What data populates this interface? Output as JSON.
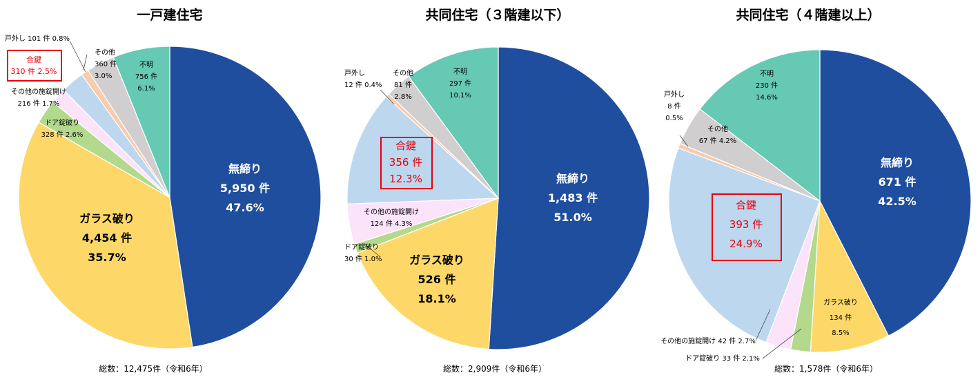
{
  "chart_data": [
    {
      "type": "pie",
      "title": "一戸建住宅",
      "total_label": "総数：12,475件（令和6年）",
      "slices": [
        {
          "name": "無締り",
          "count": "5,950 件",
          "percent": "47.6%",
          "value": 47.6,
          "color": "#1f4e9f"
        },
        {
          "name": "ガラス破り",
          "count": "4,454 件",
          "percent": "35.7%",
          "value": 35.7,
          "color": "#fdd868"
        },
        {
          "name": "ドア錠破り",
          "count": "328 件",
          "percent": "2.6%",
          "value": 2.6,
          "color": "#b2d98c",
          "inline": "328 件 2.6%"
        },
        {
          "name": "その他の施錠開け",
          "count": "216 件",
          "percent": "1.7%",
          "value": 1.7,
          "color": "#fbe3fa",
          "inline": "216 件 1.7%"
        },
        {
          "name": "合鍵",
          "count": "310 件",
          "percent": "2.5%",
          "value": 2.5,
          "color": "#bdd7ee",
          "inline": "310 件 2.5%"
        },
        {
          "name": "戸外し",
          "count": "101 件",
          "percent": "0.8%",
          "value": 0.8,
          "color": "#f8cbad",
          "inline": "戸外し 101 件 0.8%"
        },
        {
          "name": "その他",
          "count": "360 件",
          "percent": "3.0%",
          "value": 3.0,
          "color": "#d0cece"
        },
        {
          "name": "不明",
          "count": "756 件",
          "percent": "6.1%",
          "value": 6.1,
          "color": "#66c9b3"
        }
      ]
    },
    {
      "type": "pie",
      "title": "共同住宅（３階建以下）",
      "total_label": "総数：2,909件（令和6年）",
      "slices": [
        {
          "name": "無締り",
          "count": "1,483 件",
          "percent": "51.0%",
          "value": 51.0,
          "color": "#1f4e9f"
        },
        {
          "name": "ガラス破り",
          "count": "526 件",
          "percent": "18.1%",
          "value": 18.1,
          "color": "#fdd868"
        },
        {
          "name": "ドア錠破り",
          "count": "30 件",
          "percent": "1.0%",
          "value": 1.0,
          "color": "#b2d98c",
          "inline": "30 件 1.0%"
        },
        {
          "name": "その他の施錠開け",
          "count": "124 件",
          "percent": "4.3%",
          "value": 4.3,
          "color": "#fbe3fa",
          "inline": "124 件 4.3%"
        },
        {
          "name": "合鍵",
          "count": "356 件",
          "percent": "12.3%",
          "value": 12.3,
          "color": "#bdd7ee"
        },
        {
          "name": "戸外し",
          "count": "12 件",
          "percent": "0.4%",
          "value": 0.4,
          "color": "#f8cbad",
          "inline": "12 件 0.4%"
        },
        {
          "name": "その他",
          "count": "81 件",
          "percent": "2.8%",
          "value": 2.8,
          "color": "#d0cece"
        },
        {
          "name": "不明",
          "count": "297 件",
          "percent": "10.1%",
          "value": 10.1,
          "color": "#66c9b3"
        }
      ]
    },
    {
      "type": "pie",
      "title": "共同住宅（４階建以上）",
      "total_label": "総数：1,578件（令和6年）",
      "slices": [
        {
          "name": "無締り",
          "count": "671 件",
          "percent": "42.5%",
          "value": 42.5,
          "color": "#1f4e9f"
        },
        {
          "name": "ガラス破り",
          "count": "134 件",
          "percent": "8.5%",
          "value": 8.5,
          "color": "#fdd868"
        },
        {
          "name": "ドア錠破り",
          "count": "33 件",
          "percent": "2.1%",
          "value": 2.1,
          "color": "#b2d98c",
          "inline": "ドア錠破り 33 件 2.1%"
        },
        {
          "name": "その他の施錠開け",
          "count": "42 件",
          "percent": "2.7%",
          "value": 2.7,
          "color": "#fbe3fa",
          "inline": "その他の施錠開け 42 件 2.7%"
        },
        {
          "name": "合鍵",
          "count": "393 件",
          "percent": "24.9%",
          "value": 24.9,
          "color": "#bdd7ee"
        },
        {
          "name": "戸外し",
          "count": "8 件",
          "percent": "0.5%",
          "value": 0.5,
          "color": "#f8cbad"
        },
        {
          "name": "その他",
          "count": "67 件",
          "percent": "4.2%",
          "value": 4.2,
          "color": "#d0cece",
          "inline": "67 件 4.2%"
        },
        {
          "name": "不明",
          "count": "230 件",
          "percent": "14.6%",
          "value": 14.6,
          "color": "#66c9b3"
        }
      ]
    }
  ]
}
